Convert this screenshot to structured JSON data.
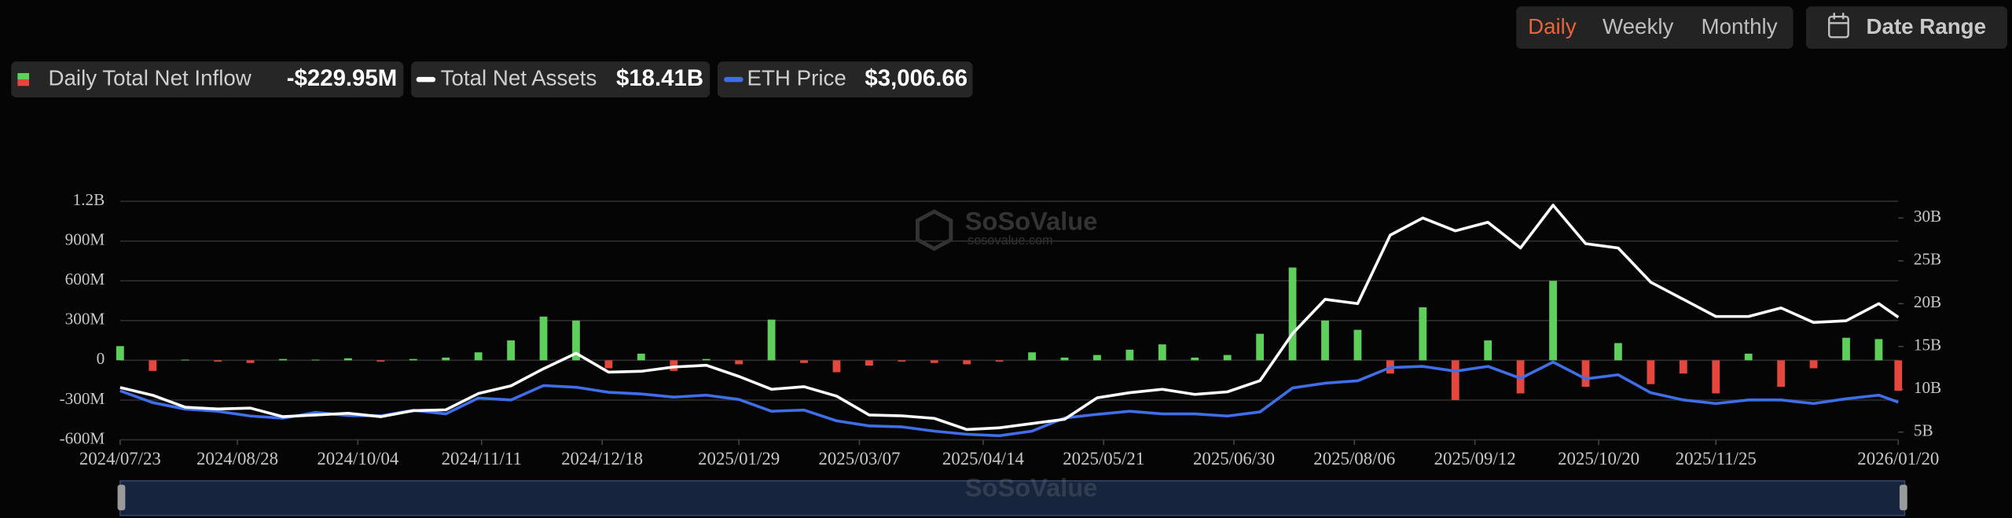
{
  "header": {
    "buttons": [
      "Daily",
      "Weekly",
      "Monthly"
    ],
    "date_range": "Date Range"
  },
  "watermark": {
    "brand": "SoSoValue",
    "site": "sosovalue.com"
  },
  "chart_data": {
    "type": "combo",
    "x": [
      "2024/07/23",
      "2024/08/02",
      "2024/08/12",
      "2024/08/22",
      "2024/09/01",
      "2024/09/11",
      "2024/09/21",
      "2024/10/01",
      "2024/10/11",
      "2024/10/21",
      "2024/10/31",
      "2024/11/10",
      "2024/11/20",
      "2024/11/30",
      "2024/12/10",
      "2024/12/20",
      "2024/12/30",
      "2025/01/09",
      "2025/01/19",
      "2025/01/29",
      "2025/02/08",
      "2025/02/18",
      "2025/02/28",
      "2025/03/10",
      "2025/03/20",
      "2025/03/30",
      "2025/04/09",
      "2025/04/19",
      "2025/04/29",
      "2025/05/09",
      "2025/05/19",
      "2025/05/29",
      "2025/06/08",
      "2025/06/18",
      "2025/06/28",
      "2025/07/08",
      "2025/07/18",
      "2025/07/28",
      "2025/08/07",
      "2025/08/17",
      "2025/08/27",
      "2025/09/06",
      "2025/09/16",
      "2025/09/26",
      "2025/10/06",
      "2025/10/16",
      "2025/10/26",
      "2025/11/05",
      "2025/11/15",
      "2025/11/25",
      "2025/12/05",
      "2025/12/15",
      "2025/12/25",
      "2026/01/04",
      "2026/01/14",
      "2026/01/20"
    ],
    "xlim": [
      "2024/07/23",
      "2026/01/20"
    ],
    "xticks": [
      "2024/07/23",
      "2024/08/28",
      "2024/10/04",
      "2024/11/11",
      "2024/12/18",
      "2025/01/29",
      "2025/03/07",
      "2025/04/14",
      "2025/05/21",
      "2025/06/30",
      "2025/08/06",
      "2025/09/12",
      "2025/10/20",
      "2025/11/25",
      "2026/01/20"
    ],
    "ylim": [
      -600,
      1200
    ],
    "yticks": [
      {
        "value": -600,
        "label": "-600M"
      },
      {
        "value": -300,
        "label": "-300M"
      },
      0,
      {
        "value": 300,
        "label": "300M"
      },
      {
        "value": 600,
        "label": "600M"
      },
      {
        "value": 900,
        "label": "900M"
      },
      {
        "value": 1200,
        "label": "1.2B"
      }
    ],
    "y2lim": [
      4.1,
      31.95
    ],
    "y2ticks": [
      {
        "value": 5,
        "label": "5B"
      },
      {
        "value": 10,
        "label": "10B"
      },
      {
        "value": 15,
        "label": "15B"
      },
      {
        "value": 20,
        "label": "20B"
      },
      {
        "value": 25,
        "label": "25B"
      },
      {
        "value": 30,
        "label": "30B"
      }
    ],
    "y3lim": [
      1440,
      11380
    ],
    "grid": true,
    "series": [
      {
        "name": "Daily Total Net Inflow",
        "type": "bar",
        "legend_value": "-$229.95M",
        "colors": {
          "positive": "#5fcf5b",
          "negative": "#e5473e"
        },
        "values": [
          107,
          -80,
          5,
          -10,
          -20,
          10,
          5,
          15,
          -10,
          10,
          20,
          60,
          150,
          330,
          300,
          -60,
          50,
          -80,
          10,
          -30,
          307,
          -20,
          -90,
          -40,
          -10,
          -20,
          -30,
          -10,
          60,
          20,
          40,
          80,
          120,
          20,
          40,
          200,
          700,
          300,
          230,
          -100,
          400,
          -300,
          150,
          -250,
          600,
          -200,
          130,
          -180,
          -100,
          -250,
          50,
          -200,
          -60,
          170,
          160,
          -229.95
        ]
      },
      {
        "name": "Total Net Assets",
        "type": "line",
        "axis": "y2",
        "legend_value": "$18.41B",
        "color": "#ffffff",
        "values": [
          10.2,
          9.3,
          7.9,
          7.7,
          7.8,
          6.8,
          7.0,
          7.2,
          6.8,
          7.5,
          7.6,
          9.5,
          10.4,
          12.4,
          14.2,
          12.0,
          12.1,
          12.6,
          12.8,
          11.5,
          10.0,
          10.3,
          9.2,
          7.0,
          6.9,
          6.6,
          5.3,
          5.5,
          6.0,
          6.5,
          9.0,
          9.6,
          10.0,
          9.4,
          9.7,
          11.0,
          16.5,
          20.5,
          20.0,
          28,
          30,
          28.5,
          29.5,
          26.5,
          31.5,
          27.0,
          26.5,
          22.5,
          20.5,
          18.5,
          18.5,
          19.5,
          17.8,
          18.0,
          20.0,
          18.41
        ]
      },
      {
        "name": "ETH Price",
        "type": "line",
        "axis": "y3",
        "legend_value": "$3,006.66",
        "color": "#3f6fe8",
        "values": [
          3480,
          2990,
          2720,
          2630,
          2430,
          2340,
          2580,
          2450,
          2440,
          2670,
          2520,
          3180,
          3100,
          3700,
          3630,
          3420,
          3350,
          3220,
          3300,
          3120,
          2630,
          2680,
          2230,
          2020,
          1980,
          1800,
          1670,
          1610,
          1800,
          2350,
          2500,
          2630,
          2520,
          2520,
          2430,
          2600,
          3600,
          3800,
          3900,
          4450,
          4500,
          4300,
          4500,
          4000,
          4680,
          3980,
          4150,
          3400,
          3100,
          2950,
          3100,
          3100,
          2950,
          3150,
          3300,
          3006.66
        ]
      }
    ]
  }
}
